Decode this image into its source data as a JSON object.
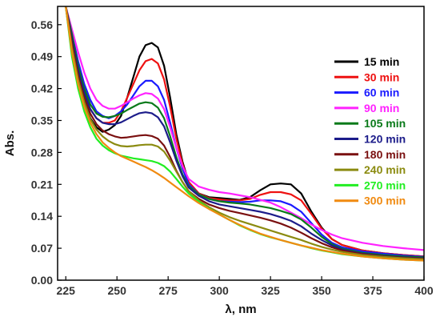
{
  "chart_data": {
    "type": "line",
    "title": "",
    "xlabel": "λ, nm",
    "ylabel": "Abs.",
    "xlim": [
      221,
      400
    ],
    "ylim": [
      0,
      0.6
    ],
    "xticks": [
      225,
      250,
      275,
      300,
      325,
      350,
      375,
      400
    ],
    "yticks": [
      0.0,
      0.07,
      0.14,
      0.21,
      0.28,
      0.35,
      0.42,
      0.49,
      0.56
    ],
    "ytick_labels": [
      "0.00",
      "0.07",
      "0.14",
      "0.21",
      "0.28",
      "0.35",
      "0.42",
      "0.49",
      "0.56"
    ],
    "grid": false,
    "legend_position": "right",
    "series": [
      {
        "name": "15 min",
        "color": "#000000",
        "x": [
          225,
          228,
          231,
          234,
          237,
          240,
          243,
          246,
          249,
          252,
          255,
          258,
          261,
          264,
          267,
          270,
          273,
          276,
          279,
          282,
          285,
          290,
          295,
          300,
          305,
          310,
          315,
          320,
          325,
          330,
          335,
          340,
          345,
          350,
          355,
          360,
          370,
          380,
          390,
          400
        ],
        "y": [
          0.6,
          0.5,
          0.44,
          0.39,
          0.355,
          0.335,
          0.325,
          0.33,
          0.34,
          0.36,
          0.4,
          0.445,
          0.49,
          0.515,
          0.52,
          0.51,
          0.47,
          0.4,
          0.32,
          0.26,
          0.215,
          0.19,
          0.182,
          0.18,
          0.178,
          0.176,
          0.182,
          0.197,
          0.21,
          0.212,
          0.21,
          0.19,
          0.15,
          0.115,
          0.09,
          0.077,
          0.065,
          0.059,
          0.055,
          0.052
        ]
      },
      {
        "name": "30 min",
        "color": "#ee1111",
        "x": [
          225,
          228,
          231,
          234,
          237,
          240,
          243,
          246,
          249,
          252,
          255,
          258,
          261,
          264,
          267,
          270,
          273,
          276,
          279,
          282,
          285,
          290,
          295,
          300,
          305,
          310,
          315,
          320,
          325,
          330,
          335,
          340,
          345,
          350,
          355,
          360,
          370,
          380,
          390,
          400
        ],
        "y": [
          0.6,
          0.52,
          0.46,
          0.41,
          0.375,
          0.355,
          0.345,
          0.345,
          0.35,
          0.37,
          0.4,
          0.43,
          0.46,
          0.48,
          0.485,
          0.475,
          0.44,
          0.38,
          0.31,
          0.255,
          0.215,
          0.19,
          0.18,
          0.177,
          0.175,
          0.175,
          0.178,
          0.187,
          0.193,
          0.193,
          0.188,
          0.175,
          0.145,
          0.113,
          0.09,
          0.077,
          0.065,
          0.059,
          0.055,
          0.052
        ]
      },
      {
        "name": "60 min",
        "color": "#1a1aff",
        "x": [
          225,
          228,
          231,
          234,
          237,
          240,
          243,
          246,
          249,
          252,
          255,
          258,
          261,
          264,
          267,
          270,
          273,
          276,
          279,
          282,
          285,
          290,
          295,
          300,
          305,
          310,
          315,
          320,
          325,
          330,
          335,
          340,
          345,
          350,
          355,
          360,
          370,
          380,
          390,
          400
        ],
        "y": [
          0.6,
          0.54,
          0.48,
          0.43,
          0.395,
          0.37,
          0.36,
          0.355,
          0.36,
          0.37,
          0.385,
          0.405,
          0.425,
          0.437,
          0.437,
          0.425,
          0.395,
          0.345,
          0.29,
          0.245,
          0.21,
          0.188,
          0.178,
          0.173,
          0.172,
          0.171,
          0.172,
          0.175,
          0.175,
          0.173,
          0.165,
          0.15,
          0.125,
          0.1,
          0.082,
          0.072,
          0.063,
          0.058,
          0.054,
          0.051
        ]
      },
      {
        "name": "90 min",
        "color": "#ff22ff",
        "x": [
          225,
          228,
          231,
          234,
          237,
          240,
          243,
          246,
          249,
          252,
          255,
          258,
          261,
          264,
          267,
          270,
          273,
          276,
          279,
          282,
          285,
          290,
          295,
          300,
          305,
          310,
          315,
          320,
          325,
          330,
          335,
          340,
          345,
          350,
          355,
          360,
          370,
          380,
          390,
          400
        ],
        "y": [
          0.6,
          0.55,
          0.5,
          0.455,
          0.42,
          0.395,
          0.382,
          0.376,
          0.376,
          0.382,
          0.39,
          0.398,
          0.405,
          0.41,
          0.408,
          0.398,
          0.375,
          0.335,
          0.29,
          0.25,
          0.222,
          0.205,
          0.198,
          0.193,
          0.19,
          0.186,
          0.182,
          0.176,
          0.17,
          0.16,
          0.148,
          0.136,
          0.122,
          0.11,
          0.1,
          0.092,
          0.082,
          0.075,
          0.07,
          0.066
        ]
      },
      {
        "name": "105 min",
        "color": "#0a7a1a",
        "x": [
          225,
          228,
          231,
          234,
          237,
          240,
          243,
          246,
          249,
          252,
          255,
          258,
          261,
          264,
          267,
          270,
          273,
          276,
          279,
          282,
          285,
          290,
          295,
          300,
          305,
          310,
          315,
          320,
          325,
          330,
          335,
          340,
          345,
          350,
          355,
          360,
          370,
          380,
          390,
          400
        ],
        "y": [
          0.6,
          0.54,
          0.47,
          0.42,
          0.385,
          0.365,
          0.358,
          0.357,
          0.36,
          0.365,
          0.373,
          0.38,
          0.387,
          0.39,
          0.388,
          0.378,
          0.355,
          0.315,
          0.27,
          0.232,
          0.206,
          0.188,
          0.178,
          0.173,
          0.17,
          0.168,
          0.166,
          0.162,
          0.158,
          0.152,
          0.145,
          0.133,
          0.115,
          0.095,
          0.079,
          0.069,
          0.06,
          0.055,
          0.052,
          0.05
        ]
      },
      {
        "name": "120 min",
        "color": "#1c1c8a",
        "x": [
          225,
          228,
          231,
          234,
          237,
          240,
          243,
          246,
          249,
          252,
          255,
          258,
          261,
          264,
          267,
          270,
          273,
          276,
          279,
          282,
          285,
          290,
          295,
          300,
          305,
          310,
          315,
          320,
          325,
          330,
          335,
          340,
          345,
          350,
          355,
          360,
          370,
          380,
          390,
          400
        ],
        "y": [
          0.6,
          0.53,
          0.46,
          0.41,
          0.375,
          0.355,
          0.345,
          0.342,
          0.342,
          0.346,
          0.353,
          0.36,
          0.366,
          0.368,
          0.366,
          0.357,
          0.337,
          0.302,
          0.262,
          0.228,
          0.203,
          0.185,
          0.173,
          0.166,
          0.162,
          0.158,
          0.154,
          0.15,
          0.145,
          0.138,
          0.13,
          0.118,
          0.102,
          0.088,
          0.076,
          0.067,
          0.058,
          0.053,
          0.05,
          0.048
        ]
      },
      {
        "name": "180 min",
        "color": "#7a1010",
        "x": [
          225,
          228,
          231,
          234,
          237,
          240,
          243,
          246,
          249,
          252,
          255,
          258,
          261,
          264,
          267,
          270,
          273,
          276,
          279,
          282,
          285,
          290,
          295,
          300,
          305,
          310,
          315,
          320,
          325,
          330,
          335,
          340,
          345,
          350,
          355,
          360,
          370,
          380,
          390,
          400
        ],
        "y": [
          0.6,
          0.52,
          0.45,
          0.4,
          0.365,
          0.342,
          0.328,
          0.32,
          0.315,
          0.312,
          0.313,
          0.315,
          0.317,
          0.318,
          0.316,
          0.31,
          0.295,
          0.27,
          0.24,
          0.215,
          0.195,
          0.178,
          0.166,
          0.158,
          0.152,
          0.147,
          0.142,
          0.137,
          0.131,
          0.124,
          0.115,
          0.104,
          0.092,
          0.081,
          0.072,
          0.065,
          0.057,
          0.052,
          0.049,
          0.047
        ]
      },
      {
        "name": "240 min",
        "color": "#8b8b10",
        "x": [
          225,
          228,
          231,
          234,
          237,
          240,
          243,
          246,
          249,
          252,
          255,
          258,
          261,
          264,
          267,
          270,
          273,
          276,
          279,
          282,
          285,
          290,
          295,
          300,
          305,
          310,
          315,
          320,
          325,
          330,
          335,
          340,
          345,
          350,
          355,
          360,
          370,
          380,
          390,
          400
        ],
        "y": [
          0.6,
          0.51,
          0.44,
          0.39,
          0.353,
          0.33,
          0.315,
          0.305,
          0.298,
          0.294,
          0.293,
          0.294,
          0.296,
          0.297,
          0.297,
          0.293,
          0.282,
          0.262,
          0.238,
          0.215,
          0.195,
          0.175,
          0.16,
          0.148,
          0.138,
          0.13,
          0.123,
          0.116,
          0.109,
          0.102,
          0.095,
          0.088,
          0.08,
          0.073,
          0.067,
          0.062,
          0.055,
          0.051,
          0.048,
          0.046
        ]
      },
      {
        "name": "270 min",
        "color": "#22ee22",
        "x": [
          225,
          228,
          231,
          234,
          237,
          240,
          243,
          246,
          249,
          252,
          255,
          258,
          261,
          264,
          267,
          270,
          273,
          276,
          279,
          282,
          285,
          290,
          295,
          300,
          305,
          310,
          315,
          320,
          325,
          330,
          335,
          340,
          345,
          350,
          355,
          360,
          370,
          380,
          390,
          400
        ],
        "y": [
          0.6,
          0.49,
          0.42,
          0.37,
          0.335,
          0.31,
          0.295,
          0.285,
          0.278,
          0.273,
          0.27,
          0.267,
          0.265,
          0.263,
          0.261,
          0.257,
          0.25,
          0.238,
          0.222,
          0.205,
          0.19,
          0.172,
          0.157,
          0.144,
          0.132,
          0.12,
          0.11,
          0.101,
          0.094,
          0.088,
          0.082,
          0.076,
          0.07,
          0.065,
          0.061,
          0.057,
          0.052,
          0.048,
          0.045,
          0.043
        ]
      },
      {
        "name": "300 min",
        "color": "#f08a10",
        "x": [
          225,
          228,
          231,
          234,
          237,
          240,
          243,
          246,
          249,
          252,
          255,
          258,
          261,
          264,
          267,
          270,
          273,
          276,
          279,
          282,
          285,
          290,
          295,
          300,
          305,
          310,
          315,
          320,
          325,
          330,
          335,
          340,
          345,
          350,
          355,
          360,
          370,
          380,
          390,
          400
        ],
        "y": [
          0.6,
          0.5,
          0.43,
          0.38,
          0.345,
          0.32,
          0.302,
          0.29,
          0.28,
          0.272,
          0.266,
          0.26,
          0.254,
          0.248,
          0.241,
          0.233,
          0.224,
          0.214,
          0.204,
          0.194,
          0.184,
          0.169,
          0.156,
          0.144,
          0.132,
          0.121,
          0.111,
          0.102,
          0.095,
          0.088,
          0.082,
          0.076,
          0.071,
          0.066,
          0.062,
          0.058,
          0.052,
          0.048,
          0.045,
          0.043
        ]
      }
    ]
  }
}
